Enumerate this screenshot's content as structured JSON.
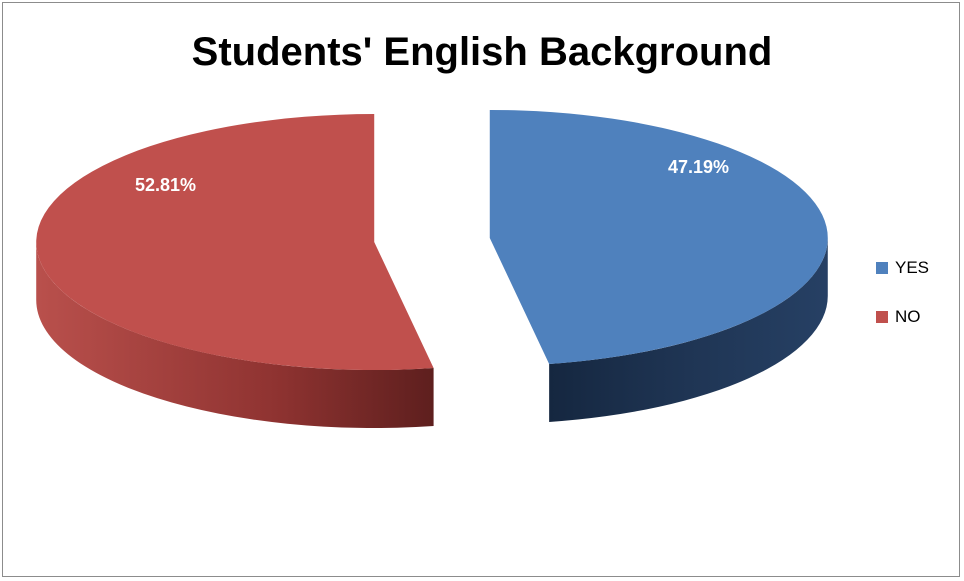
{
  "chart_data": {
    "type": "pie",
    "title": "Students' English Background",
    "slices": [
      {
        "label": "YES",
        "value": 47.19,
        "display": "47.19%",
        "color": "#4f81bd",
        "side_color": "#1f3554"
      },
      {
        "label": "NO",
        "value": 52.81,
        "display": "52.81%",
        "color": "#c0504d",
        "side_color": "#7a2a28"
      }
    ],
    "legend_position": "right",
    "style": "3d-exploded"
  }
}
